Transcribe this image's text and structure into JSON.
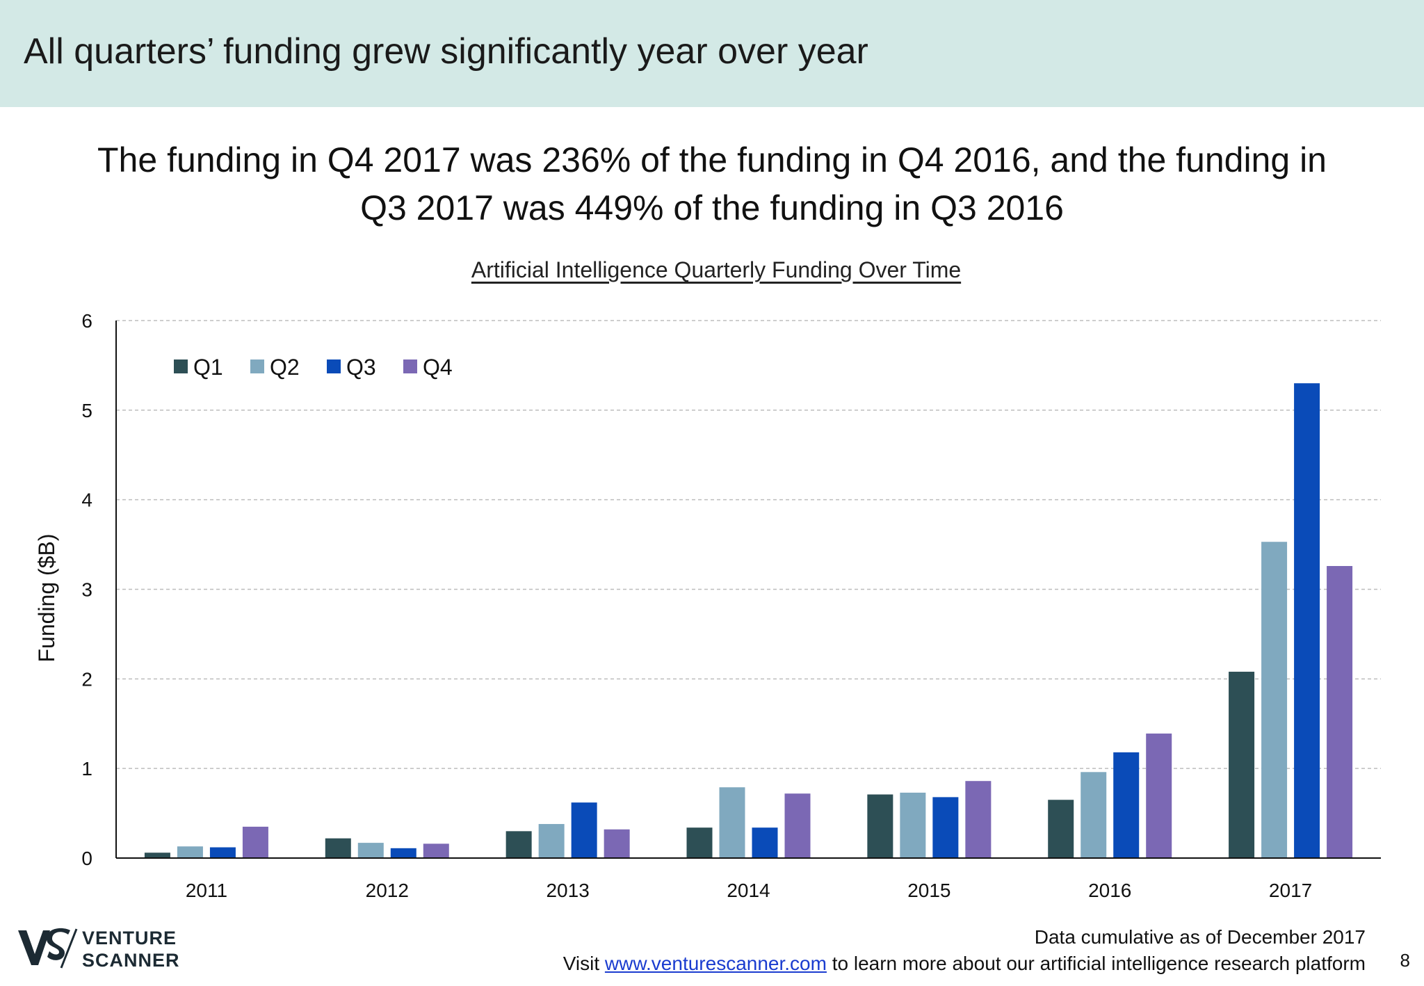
{
  "slide": {
    "title": "All quarters’ funding grew significantly year over year",
    "headline_line1": "The funding in Q4 2017 was 236% of the funding in Q4 2016, and the funding in",
    "headline_line2": "Q3 2017 was 449% of the funding in Q3 2016",
    "page_number": "8"
  },
  "footer": {
    "line1": "Data cumulative as of December 2017",
    "visit_prefix": "Visit",
    "link_text": "www.venturescanner.com",
    "visit_suffix": "to learn more about our artificial intelligence research platform"
  },
  "logo": {
    "monogram": "VS",
    "word1": "VENTURE",
    "word2": "SCANNER"
  },
  "colors": {
    "header_band": "#d3e9e6",
    "Q1": "#2d4f55",
    "Q2": "#80a9bf",
    "Q3": "#0a4bb8",
    "Q4": "#7b68b4",
    "link": "#1a3ccf"
  },
  "chart_data": {
    "type": "bar",
    "title": "Artificial Intelligence Quarterly Funding Over Time",
    "xlabel": "",
    "ylabel": "Funding ($B)",
    "ylim": [
      0,
      6
    ],
    "yticks": [
      "0",
      "1",
      "2",
      "3",
      "4",
      "5",
      "6"
    ],
    "grid": true,
    "legend_position": "top-left",
    "categories": [
      "2011",
      "2012",
      "2013",
      "2014",
      "2015",
      "2016",
      "2017"
    ],
    "series": [
      {
        "name": "Q1",
        "values": [
          0.06,
          0.22,
          0.3,
          0.34,
          0.71,
          0.65,
          2.08
        ]
      },
      {
        "name": "Q2",
        "values": [
          0.13,
          0.17,
          0.38,
          0.79,
          0.73,
          0.96,
          3.53
        ]
      },
      {
        "name": "Q3",
        "values": [
          0.12,
          0.11,
          0.62,
          0.34,
          0.68,
          1.18,
          5.3
        ]
      },
      {
        "name": "Q4",
        "values": [
          0.35,
          0.16,
          0.32,
          0.72,
          0.86,
          1.39,
          3.26
        ]
      }
    ]
  }
}
